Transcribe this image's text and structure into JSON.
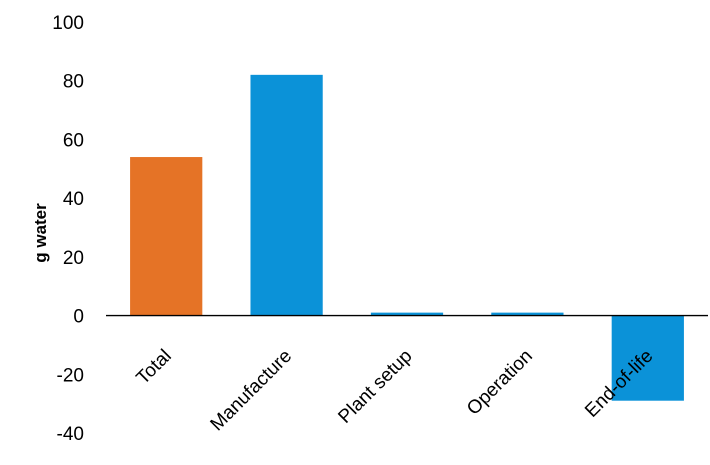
{
  "chart_data": {
    "type": "bar",
    "title": "",
    "xlabel": "",
    "ylabel": "g water",
    "categories": [
      "Total",
      "Manufacture",
      "Plant setup",
      "Operation",
      "End-of-life"
    ],
    "values": [
      54,
      82,
      1,
      1,
      -29
    ],
    "colors": [
      "#E57326",
      "#0B92D8",
      "#0B92D8",
      "#0B92D8",
      "#0B92D8"
    ],
    "ylim": [
      -40,
      100
    ],
    "yticks": [
      -40,
      -20,
      0,
      20,
      40,
      60,
      80,
      100
    ],
    "grid": false,
    "legend": "none"
  }
}
